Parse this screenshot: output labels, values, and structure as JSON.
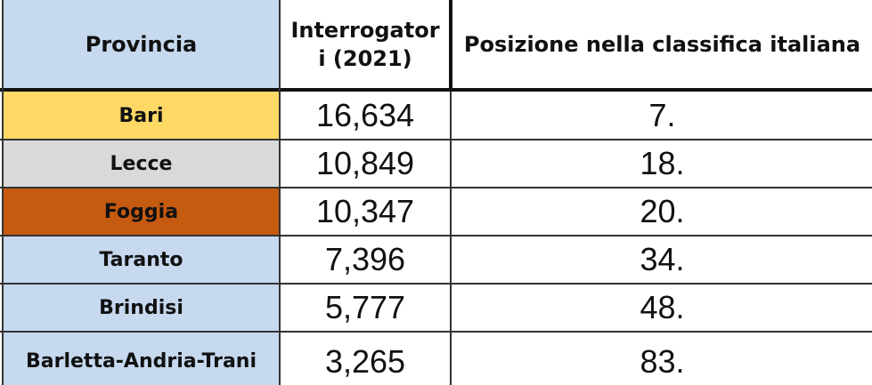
{
  "table": {
    "header": [
      "Provincia",
      "Interrogatori (2021)",
      "Posizione nella classifica italiana"
    ],
    "rows": [
      [
        "Bari",
        "16,634",
        "7."
      ],
      [
        "Lecce",
        "10,849",
        "18."
      ],
      [
        "Foggia",
        "10,347",
        "20."
      ],
      [
        "Taranto",
        "7,396",
        "34."
      ],
      [
        "Brindisi",
        "5,777",
        "48."
      ],
      [
        "Barletta-Andria-Trani",
        "3,265",
        "83."
      ]
    ]
  }
}
